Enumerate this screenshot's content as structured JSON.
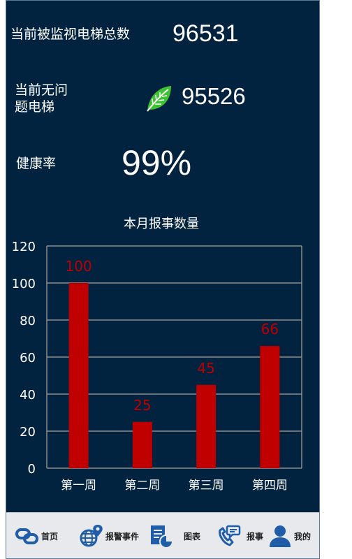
{
  "stats": {
    "monitored_label": "当前被监视电梯总数",
    "monitored_value": "96531",
    "healthy_label_line1": "当前无问",
    "healthy_label_line2": "题电梯",
    "healthy_value": "95526",
    "health_rate_label": "健康率",
    "health_rate_value": "99%"
  },
  "chart_data": {
    "type": "bar",
    "title": "本月报事数量",
    "categories": [
      "第一周",
      "第二周",
      "第三周",
      "第四周"
    ],
    "values": [
      100,
      25,
      45,
      66
    ],
    "ylim": [
      0,
      120
    ],
    "yticks": [
      0,
      20,
      40,
      60,
      80,
      100,
      120
    ],
    "grid": true,
    "bar_color": "#c00000",
    "label_color": "#c00000"
  },
  "nav": {
    "items": [
      {
        "label": "首页",
        "icon": "link-icon"
      },
      {
        "label": "报警事件",
        "icon": "globe-pin-icon"
      },
      {
        "label": "图表",
        "icon": "report-chart-icon"
      },
      {
        "label": "报事",
        "icon": "phone-chat-icon"
      },
      {
        "label": "我的",
        "icon": "user-icon"
      }
    ]
  },
  "colors": {
    "background": "#02233f",
    "accent_green": "#3ec234",
    "nav_icon": "#1f5da8"
  }
}
